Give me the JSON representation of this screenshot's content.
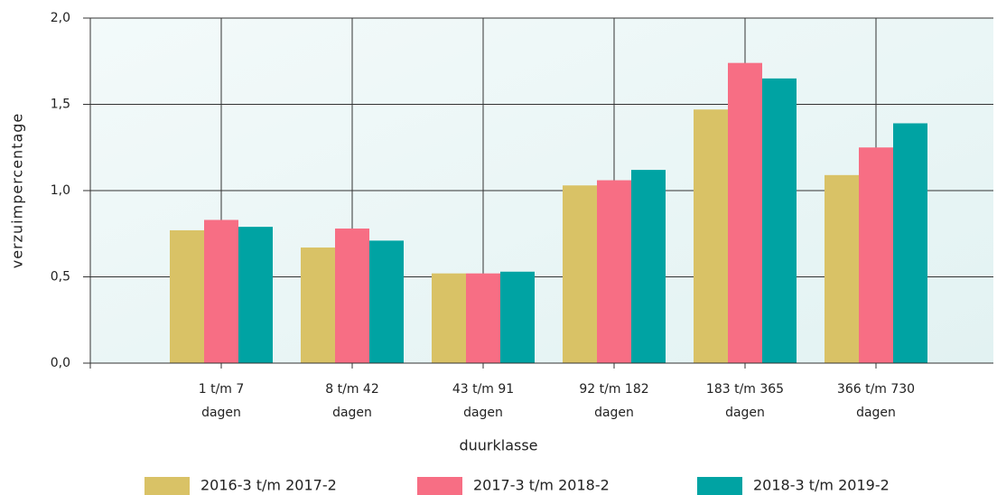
{
  "chart_data": {
    "type": "bar",
    "x_label": "duurklasse",
    "y_label": "verzuimpercentage",
    "categories": [
      [
        "1 t/m 7",
        "dagen"
      ],
      [
        "8 t/m 42",
        "dagen"
      ],
      [
        "43 t/m 91",
        "dagen"
      ],
      [
        "92 t/m 182",
        "dagen"
      ],
      [
        "183 t/m 365",
        "dagen"
      ],
      [
        "366 t/m 730",
        "dagen"
      ]
    ],
    "series": [
      {
        "name": "2016-3 t/m 2017-2",
        "color": "#d9c266",
        "values": [
          0.77,
          0.67,
          0.52,
          1.03,
          1.47,
          1.09
        ]
      },
      {
        "name": "2017-3 t/m 2018-2",
        "color": "#f76e84",
        "values": [
          0.83,
          0.78,
          0.52,
          1.06,
          1.74,
          1.25
        ]
      },
      {
        "name": "2018-3 t/m 2019-2",
        "color": "#00a3a3",
        "values": [
          0.79,
          0.71,
          0.53,
          1.12,
          1.65,
          1.39
        ]
      }
    ],
    "ylim": [
      0,
      2
    ],
    "yticks": [
      {
        "value": 0,
        "label": "0,0"
      },
      {
        "value": 0.5,
        "label": "0,5"
      },
      {
        "value": 1,
        "label": "1,0"
      },
      {
        "value": 1.5,
        "label": "1,5"
      },
      {
        "value": 2,
        "label": "2,0"
      }
    ],
    "grid": true
  }
}
